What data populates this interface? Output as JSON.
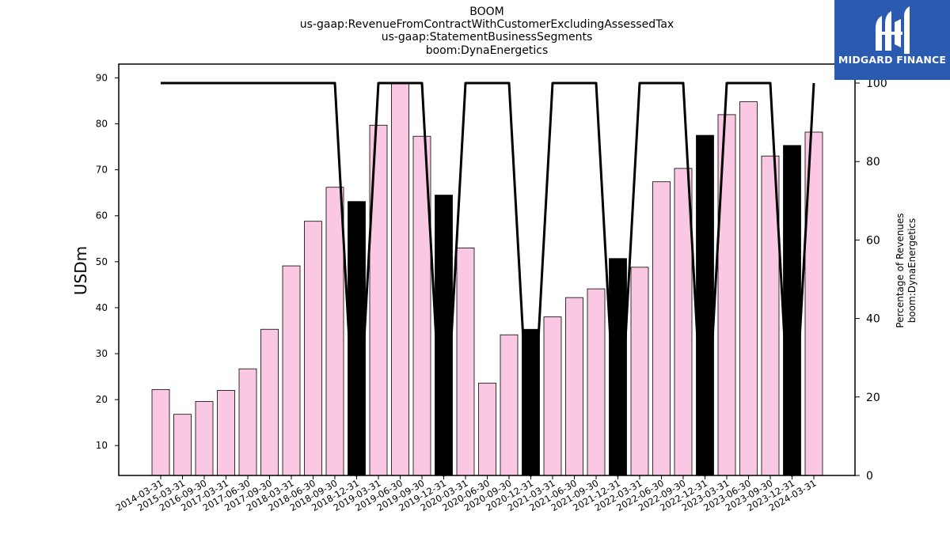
{
  "chart_data": {
    "type": "bar",
    "title_lines": [
      "BOOM",
      "us-gaap:RevenueFromContractWithCustomerExcludingAssessedTax",
      "us-gaap:StatementBusinessSegments",
      "boom:DynaEnergetics"
    ],
    "ylabel": "USDm",
    "y2label_lines": [
      "Percentage of Revenues",
      "boom:DynaEnergetics"
    ],
    "ylim": [
      3.5,
      93
    ],
    "y2lim": [
      0,
      100
    ],
    "yticks": [
      10,
      20,
      30,
      40,
      50,
      60,
      70,
      80,
      90
    ],
    "y2ticks": [
      0,
      20,
      40,
      60,
      80,
      100
    ],
    "grid": false,
    "categories": [
      "2014-03-31",
      "2015-03-31",
      "2016-09-30",
      "2017-03-31",
      "2017-06-30",
      "2017-09-30",
      "2018-03-31",
      "2018-06-30",
      "2018-09-30",
      "2018-12-31",
      "2019-03-31",
      "2019-06-30",
      "2019-09-30",
      "2019-12-31",
      "2020-03-31",
      "2020-06-30",
      "2020-09-30",
      "2020-12-31",
      "2021-03-31",
      "2021-06-30",
      "2021-09-30",
      "2021-12-31",
      "2022-03-31",
      "2022-06-30",
      "2022-09-30",
      "2022-12-31",
      "2023-03-31",
      "2023-06-30",
      "2023-09-30",
      "2023-12-31",
      "2024-03-31"
    ],
    "series": [
      {
        "kind": "bar",
        "values": [
          22.2,
          16.8,
          19.6,
          22.0,
          26.7,
          35.3,
          49.1,
          58.8,
          66.2,
          63.1,
          79.7,
          88.7,
          77.3,
          64.5,
          53.0,
          23.6,
          34.1,
          35.3,
          38.0,
          42.2,
          44.1,
          50.7,
          48.8,
          67.4,
          70.3,
          77.5,
          82.0,
          84.8,
          73.0,
          75.3,
          78.2
        ],
        "colors_by_point": [
          "#fac8e2",
          "#fac8e2",
          "#fac8e2",
          "#fac8e2",
          "#fac8e2",
          "#fac8e2",
          "#fac8e2",
          "#fac8e2",
          "#fac8e2",
          "#000000",
          "#fac8e2",
          "#fac8e2",
          "#fac8e2",
          "#000000",
          "#fac8e2",
          "#fac8e2",
          "#fac8e2",
          "#000000",
          "#fac8e2",
          "#fac8e2",
          "#fac8e2",
          "#000000",
          "#fac8e2",
          "#fac8e2",
          "#fac8e2",
          "#000000",
          "#fac8e2",
          "#fac8e2",
          "#fac8e2",
          "#000000",
          "#fac8e2"
        ]
      },
      {
        "kind": "line",
        "axis": "y2",
        "color": "#000000",
        "values": [
          100,
          100,
          100,
          100,
          100,
          100,
          100,
          100,
          100,
          0,
          100,
          100,
          100,
          0,
          100,
          100,
          100,
          0,
          100,
          100,
          100,
          0,
          100,
          100,
          100,
          0,
          100,
          100,
          100,
          0,
          100
        ]
      }
    ]
  },
  "logo": {
    "text": "MIDGARD FINANCE",
    "background": "#2a5bb0"
  }
}
